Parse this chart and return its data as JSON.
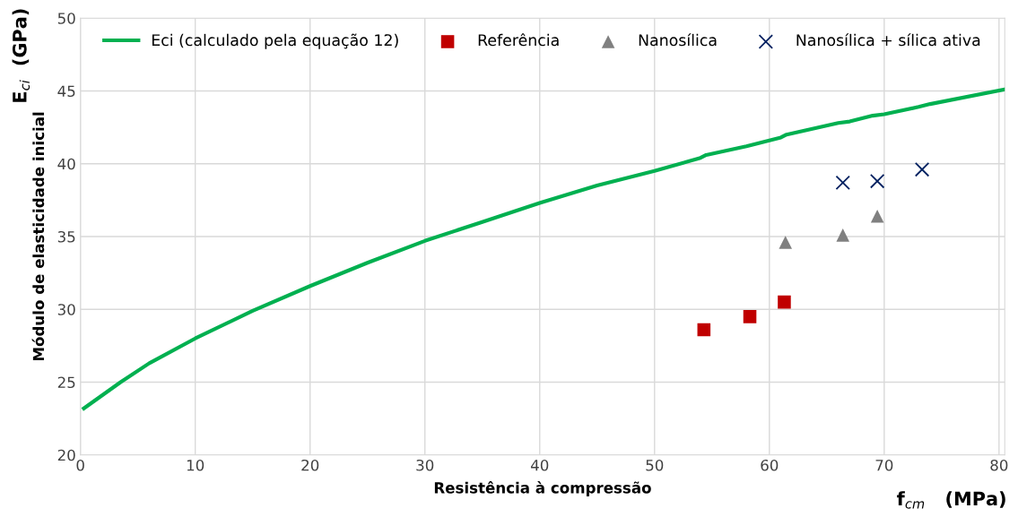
{
  "chart_data": {
    "type": "scatter",
    "xlabel": "Resistência à compressão",
    "ylabel": "Módulo de elasticidade inicial",
    "annotations": [
      "f$_{cm}$   (MPa)",
      "E$_{ci}$  (GPa)"
    ],
    "xlim": [
      0,
      80.5
    ],
    "xticks": [
      0,
      10,
      20,
      30,
      40,
      50,
      60,
      70,
      80
    ],
    "ylim": [
      20,
      50
    ],
    "yticks": [
      20,
      25,
      30,
      35,
      40,
      45,
      50
    ],
    "grid": true,
    "legend": "top",
    "series": [
      {
        "name": "Eci (calculado pela equação 12)",
        "type": "line",
        "color": "#00b050",
        "marker": "none",
        "line_style": "solid",
        "x": [
          0.3,
          3.5,
          6,
          10,
          15,
          20,
          25,
          30,
          35,
          40,
          45,
          50,
          54,
          54.5,
          58,
          61,
          61.5,
          66,
          67,
          69,
          70,
          73,
          74,
          80.5
        ],
        "values": [
          23.2,
          25.0,
          26.3,
          28.0,
          29.9,
          31.6,
          33.2,
          34.7,
          36.0,
          37.3,
          38.5,
          39.5,
          40.4,
          40.6,
          41.2,
          41.8,
          42.0,
          42.8,
          42.9,
          43.3,
          43.4,
          43.9,
          44.1,
          45.1
        ]
      },
      {
        "name": "Referência",
        "color": "#c00000",
        "marker": "square",
        "x": [
          54.3,
          58.3,
          61.3
        ],
        "values": [
          28.6,
          29.5,
          30.5
        ]
      },
      {
        "name": "Nanosílica",
        "color": "#808080",
        "marker": "triangle",
        "x": [
          61.4,
          66.4,
          69.4
        ],
        "values": [
          34.6,
          35.1,
          36.4
        ]
      },
      {
        "name": "Nanosílica + sílica ativa",
        "color": "#002060",
        "marker": "cross",
        "x": [
          66.4,
          69.4,
          73.3
        ],
        "values": [
          38.7,
          38.8,
          39.6
        ]
      }
    ]
  }
}
